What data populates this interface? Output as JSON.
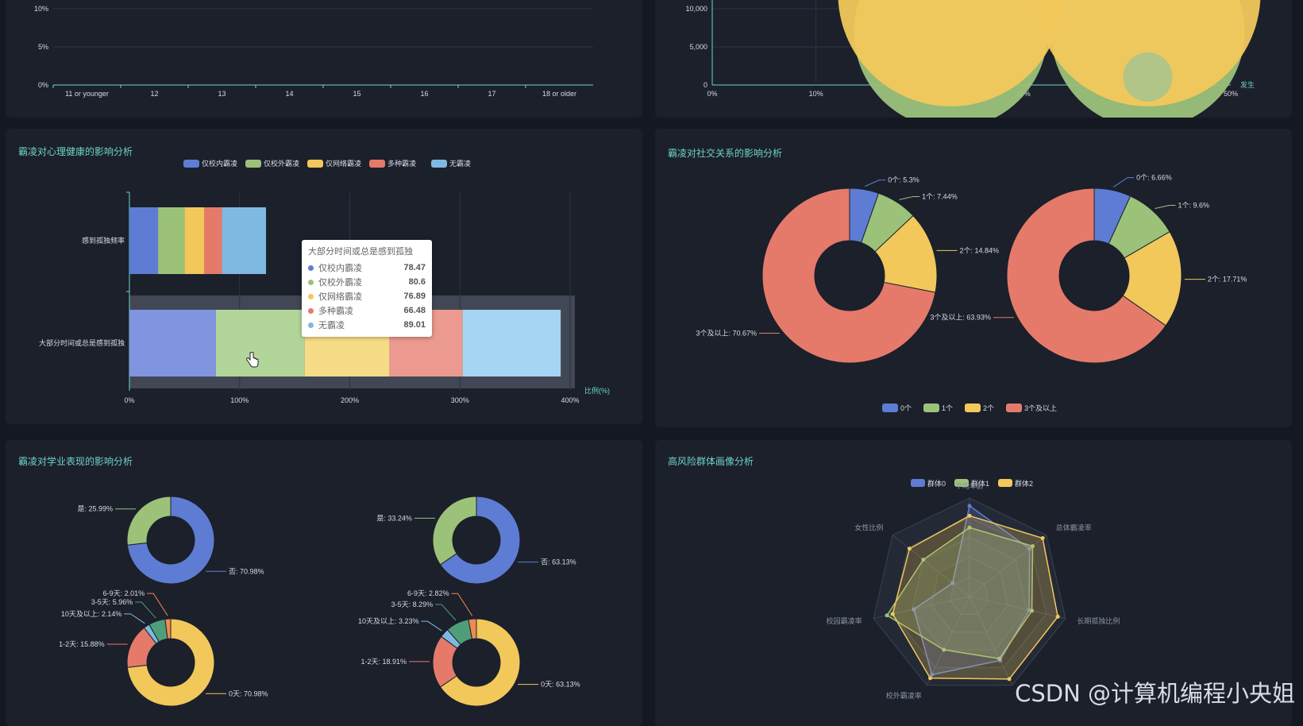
{
  "colors": {
    "blue": "#5f7cd4",
    "green": "#9cc27a",
    "yellow": "#f2c85b",
    "red": "#e57a6a",
    "lightblue": "#7fb9e2",
    "teal": "#4f9e7a",
    "orange": "#ef8a55"
  },
  "panels": {
    "mental": {
      "title": "霸凌对心理健康的影响分析"
    },
    "social": {
      "title": "霸凌对社交关系的影响分析"
    },
    "academic": {
      "title": "霸凌对学业表现的影响分析"
    },
    "risk": {
      "title": "高风险群体画像分析"
    }
  },
  "tooltip": {
    "title": "大部分时间或总是感到孤独",
    "rows": [
      {
        "name": "仅校内霸凌",
        "value": "78.47",
        "color": "#5f7cd4"
      },
      {
        "name": "仅校外霸凌",
        "value": "80.6",
        "color": "#9cc27a"
      },
      {
        "name": "仅网络霸凌",
        "value": "76.89",
        "color": "#f2c85b"
      },
      {
        "name": "多种霸凌",
        "value": "66.48",
        "color": "#e57a6a"
      },
      {
        "name": "无霸凌",
        "value": "89.01",
        "color": "#7fb9e2"
      }
    ]
  },
  "watermark": "CSDN @计算机编程小央姐",
  "chart_data": [
    {
      "id": "age-chart",
      "type": "line",
      "categories": [
        "11 or younger",
        "12",
        "13",
        "14",
        "15",
        "16",
        "17",
        "18 or older"
      ],
      "yticks": [
        "0%",
        "5%",
        "10%"
      ],
      "series": []
    },
    {
      "id": "bubble-chart",
      "type": "scatter",
      "xticks": [
        "0%",
        "10%",
        "30%",
        "50%"
      ],
      "yticks": [
        "0",
        "5,000",
        "10,000"
      ],
      "xaxis_name": "发生",
      "points": [
        {
          "x": 23,
          "y": 7000,
          "color": "#9cc27a"
        },
        {
          "x": 42,
          "y": 7000,
          "color": "#9cc27a"
        },
        {
          "x": 23,
          "y": 12000,
          "color": "#f2c85b"
        },
        {
          "x": 42,
          "y": 12000,
          "color": "#f2c85b"
        }
      ]
    },
    {
      "id": "mental-chart",
      "type": "bar",
      "stacked": true,
      "horizontal": true,
      "categories": [
        "感到孤独频率",
        "大部分时间或总是感到孤独"
      ],
      "legend": [
        "仅校内霸凌",
        "仅校外霸凌",
        "仅网络霸凌",
        "多种霸凌",
        "无霸凌"
      ],
      "series": [
        {
          "name": "仅校内霸凌",
          "values": [
            26,
            78.47
          ]
        },
        {
          "name": "仅校外霸凌",
          "values": [
            24,
            80.6
          ]
        },
        {
          "name": "仅网络霸凌",
          "values": [
            18,
            76.89
          ]
        },
        {
          "name": "多种霸凌",
          "values": [
            16,
            66.48
          ]
        },
        {
          "name": "无霸凌",
          "values": [
            40,
            89.01
          ]
        }
      ],
      "xticks": [
        "0%",
        "100%",
        "200%",
        "300%",
        "400%"
      ],
      "xlim": [
        0,
        400
      ],
      "xlabel": "比例(%)",
      "highlight": "大部分时间或总是感到孤独"
    },
    {
      "id": "social-chart",
      "type": "pie",
      "donut": true,
      "legend": [
        "0个",
        "1个",
        "2个",
        "3个及以上"
      ],
      "pies": [
        {
          "slices": [
            {
              "name": "0个",
              "value": 5.3,
              "label": "0个: 5.3%"
            },
            {
              "name": "1个",
              "value": 7.44,
              "label": "1个: 7.44%"
            },
            {
              "name": "2个",
              "value": 14.84,
              "label": "2个: 14.84%"
            },
            {
              "name": "3个及以上",
              "value": 70.67,
              "label": "3个及以上: 70.67%"
            }
          ]
        },
        {
          "slices": [
            {
              "name": "0个",
              "value": 6.66,
              "label": "0个: 6.66%"
            },
            {
              "name": "1个",
              "value": 9.6,
              "label": "1个: 9.6%"
            },
            {
              "name": "2个",
              "value": 17.71,
              "label": "2个: 17.71%"
            },
            {
              "name": "3个及以上",
              "value": 63.93,
              "label": "3个及以上: 63.93%"
            }
          ]
        }
      ]
    },
    {
      "id": "academic-chart",
      "type": "pie",
      "donut": true,
      "pies": [
        {
          "slices": [
            {
              "name": "否",
              "value": 70.98,
              "label": "否: 70.98%"
            },
            {
              "name": "是",
              "value": 25.99,
              "label": "是: 25.99%"
            }
          ]
        },
        {
          "slices": [
            {
              "name": "否",
              "value": 63.13,
              "label": "否: 63.13%"
            },
            {
              "name": "是",
              "value": 33.24,
              "label": "是: 33.24%"
            }
          ]
        },
        {
          "slices": [
            {
              "name": "0天",
              "value": 70.98,
              "label": "0天: 70.98%"
            },
            {
              "name": "1-2天",
              "value": 15.88,
              "label": "1-2天: 15.88%"
            },
            {
              "name": "10天及以上",
              "value": 2.14,
              "label": "10天及以上: 2.14%"
            },
            {
              "name": "3-5天",
              "value": 5.96,
              "label": "3-5天: 5.96%"
            },
            {
              "name": "6-9天",
              "value": 2.01,
              "label": "6-9天: 2.01%"
            }
          ]
        },
        {
          "slices": [
            {
              "name": "0天",
              "value": 63.13,
              "label": "0天: 63.13%"
            },
            {
              "name": "1-2天",
              "value": 18.91,
              "label": "1-2天: 18.91%"
            },
            {
              "name": "10天及以上",
              "value": 3.23,
              "label": "10天及以上: 3.23%"
            },
            {
              "name": "3-5天",
              "value": 8.29,
              "label": "3-5天: 8.29%"
            },
            {
              "name": "6-9天",
              "value": 2.82,
              "label": "6-9天: 2.82%"
            }
          ]
        }
      ]
    },
    {
      "id": "risk-chart",
      "type": "radar",
      "legend": [
        "群体0",
        "群体1",
        "群体2"
      ],
      "indicators": [
        "平均年龄",
        "总体霸凌率",
        "长期孤独比例",
        "",
        "校外霸凌率",
        "校园霸凌率",
        "女性比例"
      ],
      "series": [
        {
          "name": "群体0",
          "values": [
            0.92,
            0.78,
            0.62,
            0.72,
            0.88,
            0.58,
            0.22
          ]
        },
        {
          "name": "群体1",
          "values": [
            0.7,
            0.82,
            0.65,
            0.7,
            0.6,
            0.86,
            0.6
          ]
        },
        {
          "name": "群体2",
          "values": [
            0.82,
            0.95,
            0.92,
            0.93,
            0.92,
            0.8,
            0.78
          ]
        }
      ]
    }
  ]
}
